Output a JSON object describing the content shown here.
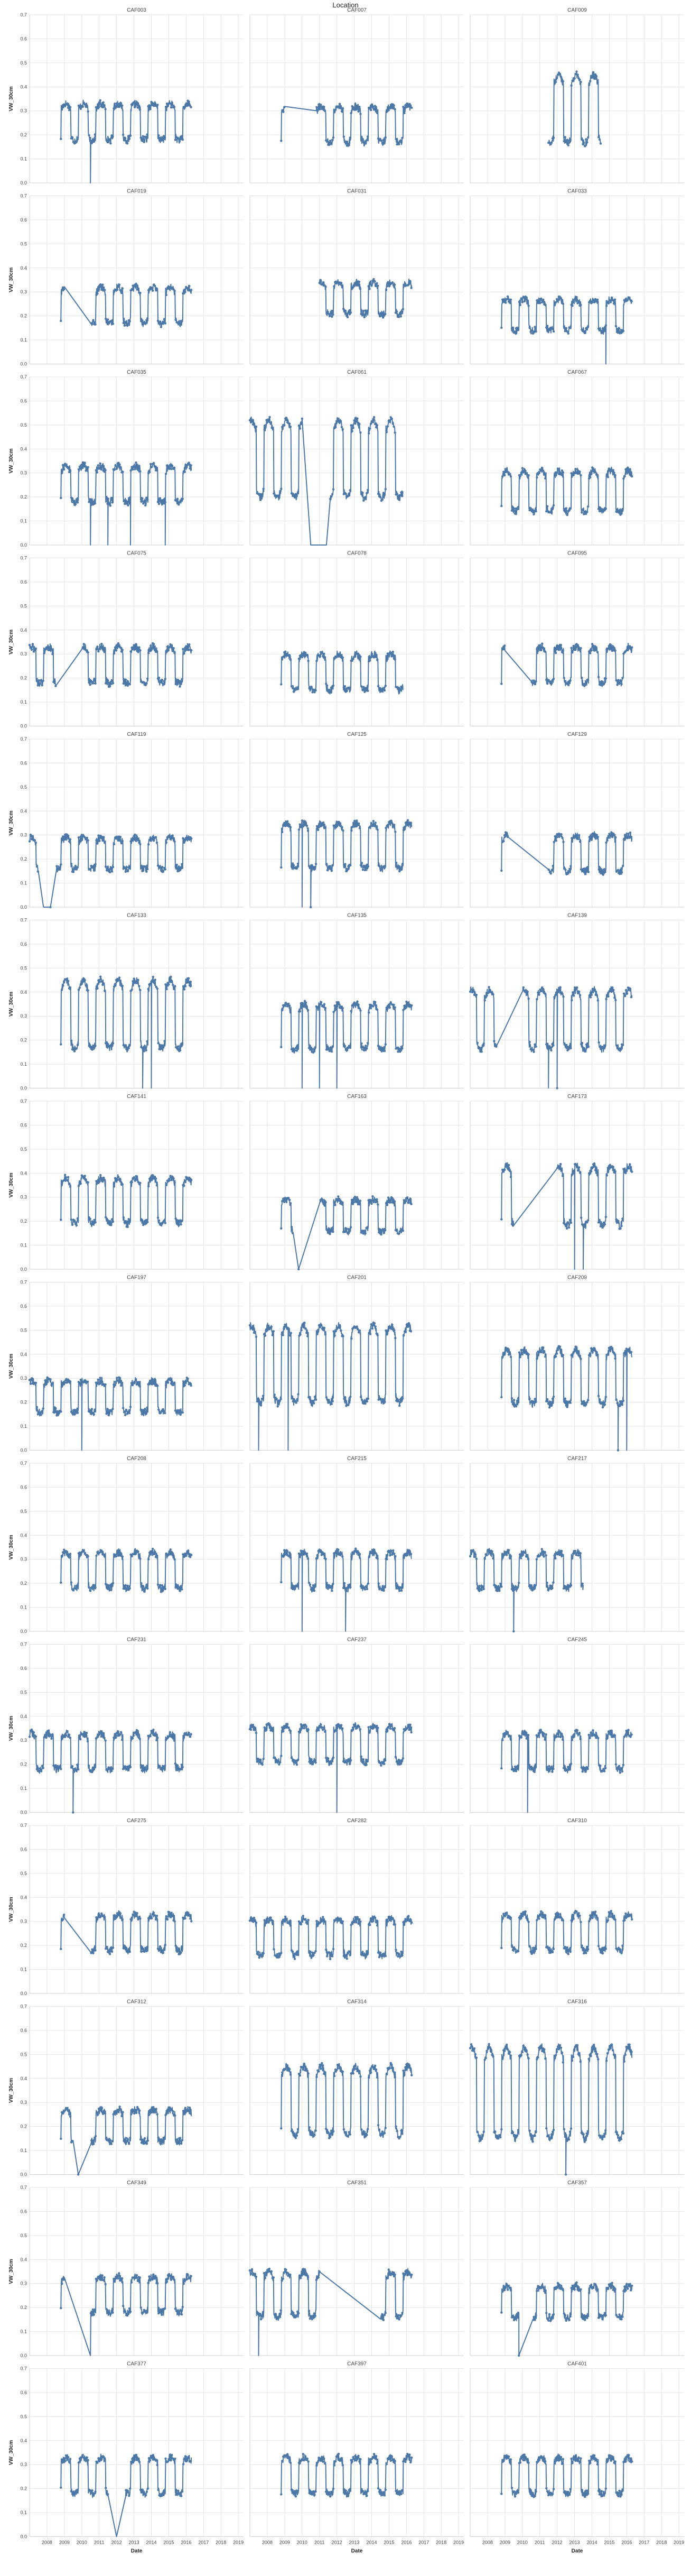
{
  "chart_data": {
    "type": "line",
    "title": "Location",
    "xlabel": "Date",
    "ylabel": "VW_30cm",
    "xlim": [
      2007.0,
      2019.3
    ],
    "ylim": [
      0,
      0.7
    ],
    "x_ticks": [
      2008,
      2009,
      2010,
      2011,
      2012,
      2013,
      2014,
      2015,
      2016,
      2017,
      2018,
      2019
    ],
    "y_ticks": [
      0.0,
      0.1,
      0.2,
      0.3,
      0.4,
      0.5,
      0.6,
      0.7
    ],
    "colors": {
      "series": "#4c78a8",
      "grid": "#e3e3e3"
    },
    "facets": [
      {
        "name": "CAF003",
        "start": 2008.8,
        "end": 2016.3,
        "base": 0.25,
        "amp": 0.08,
        "gaps": [],
        "outliers": [
          [
            2010.5,
            0.0
          ]
        ]
      },
      {
        "name": "CAF007",
        "start": 2008.8,
        "end": 2016.3,
        "base": 0.24,
        "amp": 0.08,
        "gaps": [
          [
            2009.0,
            2010.8
          ]
        ],
        "outliers": []
      },
      {
        "name": "CAF009",
        "start": 2011.5,
        "end": 2015.8,
        "base": 0.3,
        "amp": 0.15,
        "gaps": [
          [
            2014.5,
            2015.8
          ]
        ],
        "outliers": []
      },
      {
        "name": "CAF019",
        "start": 2008.8,
        "end": 2016.3,
        "base": 0.24,
        "amp": 0.08,
        "gaps": [
          [
            2009.0,
            2010.5
          ]
        ],
        "outliers": []
      },
      {
        "name": "CAF031",
        "start": 2011.0,
        "end": 2016.3,
        "base": 0.27,
        "amp": 0.07,
        "gaps": [],
        "outliers": []
      },
      {
        "name": "CAF033",
        "start": 2008.8,
        "end": 2016.3,
        "base": 0.2,
        "amp": 0.07,
        "gaps": [],
        "outliers": [
          [
            2014.8,
            0.0
          ]
        ]
      },
      {
        "name": "CAF035",
        "start": 2008.8,
        "end": 2016.3,
        "base": 0.25,
        "amp": 0.08,
        "gaps": [],
        "outliers": [
          [
            2010.5,
            0.0
          ],
          [
            2011.5,
            0.0
          ],
          [
            2012.8,
            0.0
          ],
          [
            2014.8,
            0.0
          ]
        ]
      },
      {
        "name": "CAF061",
        "start": 2007.0,
        "end": 2015.8,
        "base": 0.35,
        "amp": 0.17,
        "gaps": [
          [
            2010.0,
            2011.6
          ]
        ],
        "outliers": [
          [
            2010.5,
            0.0
          ],
          [
            2011.4,
            0.0
          ]
        ]
      },
      {
        "name": "CAF067",
        "start": 2008.8,
        "end": 2016.3,
        "base": 0.22,
        "amp": 0.09,
        "gaps": [],
        "outliers": []
      },
      {
        "name": "CAF075",
        "start": 2007.0,
        "end": 2016.3,
        "base": 0.25,
        "amp": 0.08,
        "gaps": [
          [
            2008.5,
            2010.0
          ]
        ],
        "outliers": []
      },
      {
        "name": "CAF078",
        "start": 2008.8,
        "end": 2015.8,
        "base": 0.22,
        "amp": 0.08,
        "gaps": [],
        "outliers": []
      },
      {
        "name": "CAF095",
        "start": 2008.8,
        "end": 2016.3,
        "base": 0.25,
        "amp": 0.08,
        "gaps": [
          [
            2009.0,
            2010.5
          ]
        ],
        "outliers": []
      },
      {
        "name": "CAF119",
        "start": 2007.0,
        "end": 2016.3,
        "base": 0.22,
        "amp": 0.07,
        "gaps": [
          [
            2007.5,
            2008.5
          ]
        ],
        "outliers": [
          [
            2007.8,
            0.0
          ],
          [
            2008.2,
            0.0
          ]
        ]
      },
      {
        "name": "CAF125",
        "start": 2008.8,
        "end": 2016.3,
        "base": 0.25,
        "amp": 0.1,
        "gaps": [],
        "outliers": [
          [
            2010.0,
            0.0
          ],
          [
            2010.5,
            0.0
          ]
        ]
      },
      {
        "name": "CAF129",
        "start": 2008.8,
        "end": 2016.3,
        "base": 0.22,
        "amp": 0.08,
        "gaps": [
          [
            2009.2,
            2011.5
          ]
        ],
        "outliers": []
      },
      {
        "name": "CAF133",
        "start": 2008.8,
        "end": 2016.3,
        "base": 0.3,
        "amp": 0.15,
        "gaps": [],
        "outliers": [
          [
            2013.5,
            0.0
          ],
          [
            2014.0,
            0.0
          ]
        ]
      },
      {
        "name": "CAF135",
        "start": 2008.8,
        "end": 2016.3,
        "base": 0.25,
        "amp": 0.1,
        "gaps": [],
        "outliers": [
          [
            2010.0,
            0.0
          ],
          [
            2011.0,
            0.0
          ],
          [
            2012.0,
            0.0
          ]
        ]
      },
      {
        "name": "CAF139",
        "start": 2007.0,
        "end": 2016.3,
        "base": 0.28,
        "amp": 0.13,
        "gaps": [
          [
            2008.5,
            2010.0
          ]
        ],
        "outliers": [
          [
            2011.5,
            0.0
          ],
          [
            2012.0,
            0.0
          ]
        ]
      },
      {
        "name": "CAF141",
        "start": 2008.8,
        "end": 2016.3,
        "base": 0.28,
        "amp": 0.1,
        "gaps": [],
        "outliers": []
      },
      {
        "name": "CAF163",
        "start": 2008.8,
        "end": 2016.3,
        "base": 0.22,
        "amp": 0.07,
        "gaps": [
          [
            2009.5,
            2011.0
          ]
        ],
        "outliers": [
          [
            2009.8,
            0.0
          ]
        ]
      },
      {
        "name": "CAF173",
        "start": 2008.8,
        "end": 2016.3,
        "base": 0.3,
        "amp": 0.13,
        "gaps": [
          [
            2009.5,
            2012.0
          ]
        ],
        "outliers": [
          [
            2013.0,
            0.0
          ],
          [
            2013.5,
            0.0
          ]
        ]
      },
      {
        "name": "CAF197",
        "start": 2007.0,
        "end": 2016.3,
        "base": 0.22,
        "amp": 0.07,
        "gaps": [],
        "outliers": [
          [
            2010.0,
            0.0
          ]
        ]
      },
      {
        "name": "CAF201",
        "start": 2007.0,
        "end": 2016.3,
        "base": 0.35,
        "amp": 0.17,
        "gaps": [],
        "outliers": [
          [
            2007.5,
            0.0
          ],
          [
            2009.2,
            0.0
          ]
        ]
      },
      {
        "name": "CAF209",
        "start": 2008.8,
        "end": 2016.3,
        "base": 0.3,
        "amp": 0.12,
        "gaps": [],
        "outliers": [
          [
            2015.5,
            0.0
          ],
          [
            2016.0,
            0.0
          ]
        ]
      },
      {
        "name": "CAF208",
        "start": 2008.8,
        "end": 2016.3,
        "base": 0.25,
        "amp": 0.08,
        "gaps": [],
        "outliers": []
      },
      {
        "name": "CAF215",
        "start": 2008.8,
        "end": 2016.3,
        "base": 0.25,
        "amp": 0.08,
        "gaps": [],
        "outliers": [
          [
            2010.0,
            0.0
          ],
          [
            2012.5,
            0.0
          ]
        ]
      },
      {
        "name": "CAF217",
        "start": 2007.0,
        "end": 2016.3,
        "base": 0.25,
        "amp": 0.08,
        "gaps": [
          [
            2013.5,
            2016.3
          ]
        ],
        "outliers": [
          [
            2009.5,
            0.0
          ]
        ]
      },
      {
        "name": "CAF231",
        "start": 2007.0,
        "end": 2016.3,
        "base": 0.25,
        "amp": 0.08,
        "gaps": [],
        "outliers": [
          [
            2009.5,
            0.0
          ]
        ]
      },
      {
        "name": "CAF237",
        "start": 2007.0,
        "end": 2016.3,
        "base": 0.28,
        "amp": 0.08,
        "gaps": [],
        "outliers": [
          [
            2012.0,
            0.0
          ]
        ]
      },
      {
        "name": "CAF245",
        "start": 2008.8,
        "end": 2016.3,
        "base": 0.25,
        "amp": 0.08,
        "gaps": [],
        "outliers": [
          [
            2010.3,
            0.0
          ]
        ]
      },
      {
        "name": "CAF275",
        "start": 2008.8,
        "end": 2016.3,
        "base": 0.25,
        "amp": 0.08,
        "gaps": [
          [
            2009.0,
            2010.5
          ]
        ],
        "outliers": []
      },
      {
        "name": "CAF282",
        "start": 2007.0,
        "end": 2016.3,
        "base": 0.23,
        "amp": 0.08,
        "gaps": [],
        "outliers": []
      },
      {
        "name": "CAF310",
        "start": 2008.8,
        "end": 2016.3,
        "base": 0.25,
        "amp": 0.08,
        "gaps": [],
        "outliers": []
      },
      {
        "name": "CAF312",
        "start": 2008.8,
        "end": 2016.3,
        "base": 0.2,
        "amp": 0.07,
        "gaps": [
          [
            2009.5,
            2010.5
          ]
        ],
        "outliers": [
          [
            2009.8,
            0.0
          ]
        ]
      },
      {
        "name": "CAF314",
        "start": 2008.8,
        "end": 2016.3,
        "base": 0.3,
        "amp": 0.15,
        "gaps": [],
        "outliers": []
      },
      {
        "name": "CAF316",
        "start": 2007.0,
        "end": 2016.3,
        "base": 0.33,
        "amp": 0.2,
        "gaps": [],
        "outliers": [
          [
            2012.5,
            0.0
          ]
        ]
      },
      {
        "name": "CAF349",
        "start": 2008.8,
        "end": 2016.3,
        "base": 0.25,
        "amp": 0.08,
        "gaps": [
          [
            2009.0,
            2010.5
          ]
        ],
        "outliers": [
          [
            2010.5,
            0.0
          ]
        ]
      },
      {
        "name": "CAF351",
        "start": 2007.0,
        "end": 2016.3,
        "base": 0.25,
        "amp": 0.1,
        "gaps": [
          [
            2011.0,
            2014.5
          ]
        ],
        "outliers": [
          [
            2007.5,
            0.0
          ]
        ]
      },
      {
        "name": "CAF357",
        "start": 2008.8,
        "end": 2016.3,
        "base": 0.22,
        "amp": 0.07,
        "gaps": [
          [
            2009.8,
            2010.6
          ]
        ],
        "outliers": [
          [
            2009.8,
            0.0
          ]
        ]
      },
      {
        "name": "CAF377",
        "start": 2008.8,
        "end": 2016.3,
        "base": 0.25,
        "amp": 0.08,
        "gaps": [
          [
            2011.5,
            2012.5
          ]
        ],
        "outliers": [
          [
            2012.0,
            0.0
          ]
        ]
      },
      {
        "name": "CAF397",
        "start": 2008.8,
        "end": 2016.3,
        "base": 0.25,
        "amp": 0.08,
        "gaps": [],
        "outliers": []
      },
      {
        "name": "CAF401",
        "start": 2008.8,
        "end": 2016.3,
        "base": 0.25,
        "amp": 0.08,
        "gaps": [],
        "outliers": []
      }
    ]
  }
}
